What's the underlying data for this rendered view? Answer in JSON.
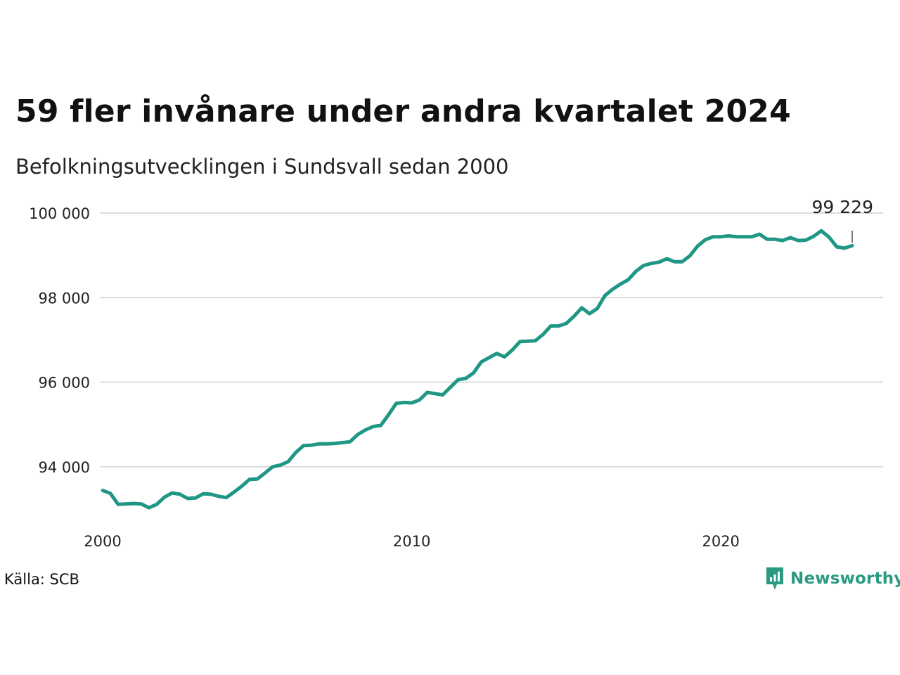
{
  "title": "59 fler invånare under andra kvartalet 2024",
  "subtitle": "Befolkningsutvecklingen i Sundsvall sedan 2000",
  "source": "Källa: SCB",
  "brand": {
    "name": "Newsworthy",
    "icon": "newsworthy-logo-icon",
    "color": "#2a9a83"
  },
  "colors": {
    "line": "#1f9784",
    "grid": "#dcdcdc",
    "text": "#222222"
  },
  "chart_data": {
    "type": "line",
    "title": "59 fler invånare under andra kvartalet 2024",
    "subtitle": "Befolkningsutvecklingen i Sundsvall sedan 2000",
    "xlabel": "",
    "ylabel": "",
    "x_frequency": "quarterly",
    "x_start": "2000 Q1",
    "x_end": "2024 Q2",
    "xlim": [
      2000,
      2025.25
    ],
    "ylim": [
      92600,
      100300
    ],
    "yticks": [
      94000,
      96000,
      98000,
      100000
    ],
    "ytick_labels": [
      "94 000",
      "96 000",
      "98 000",
      "100 000"
    ],
    "xticks": [
      2000,
      2010,
      2020
    ],
    "xtick_labels": [
      "2000",
      "2010",
      "2020"
    ],
    "grid": true,
    "end_label": "99 229",
    "values": [
      93440,
      93370,
      93110,
      93120,
      93130,
      93120,
      93030,
      93110,
      93280,
      93380,
      93350,
      93250,
      93260,
      93360,
      93350,
      93300,
      93270,
      93400,
      93540,
      93700,
      93710,
      93850,
      94000,
      94040,
      94120,
      94340,
      94500,
      94510,
      94540,
      94540,
      94550,
      94570,
      94590,
      94760,
      94870,
      94950,
      94980,
      95230,
      95500,
      95520,
      95510,
      95580,
      95760,
      95730,
      95700,
      95880,
      96060,
      96090,
      96220,
      96480,
      96580,
      96680,
      96600,
      96760,
      96960,
      96970,
      96980,
      97130,
      97330,
      97330,
      97390,
      97560,
      97760,
      97620,
      97740,
      98050,
      98200,
      98320,
      98420,
      98620,
      98760,
      98810,
      98840,
      98920,
      98850,
      98850,
      98990,
      99220,
      99370,
      99440,
      99440,
      99460,
      99440,
      99440,
      99440,
      99500,
      99380,
      99380,
      99350,
      99420,
      99350,
      99360,
      99450,
      99580,
      99430,
      99200,
      99170,
      99229
    ]
  }
}
